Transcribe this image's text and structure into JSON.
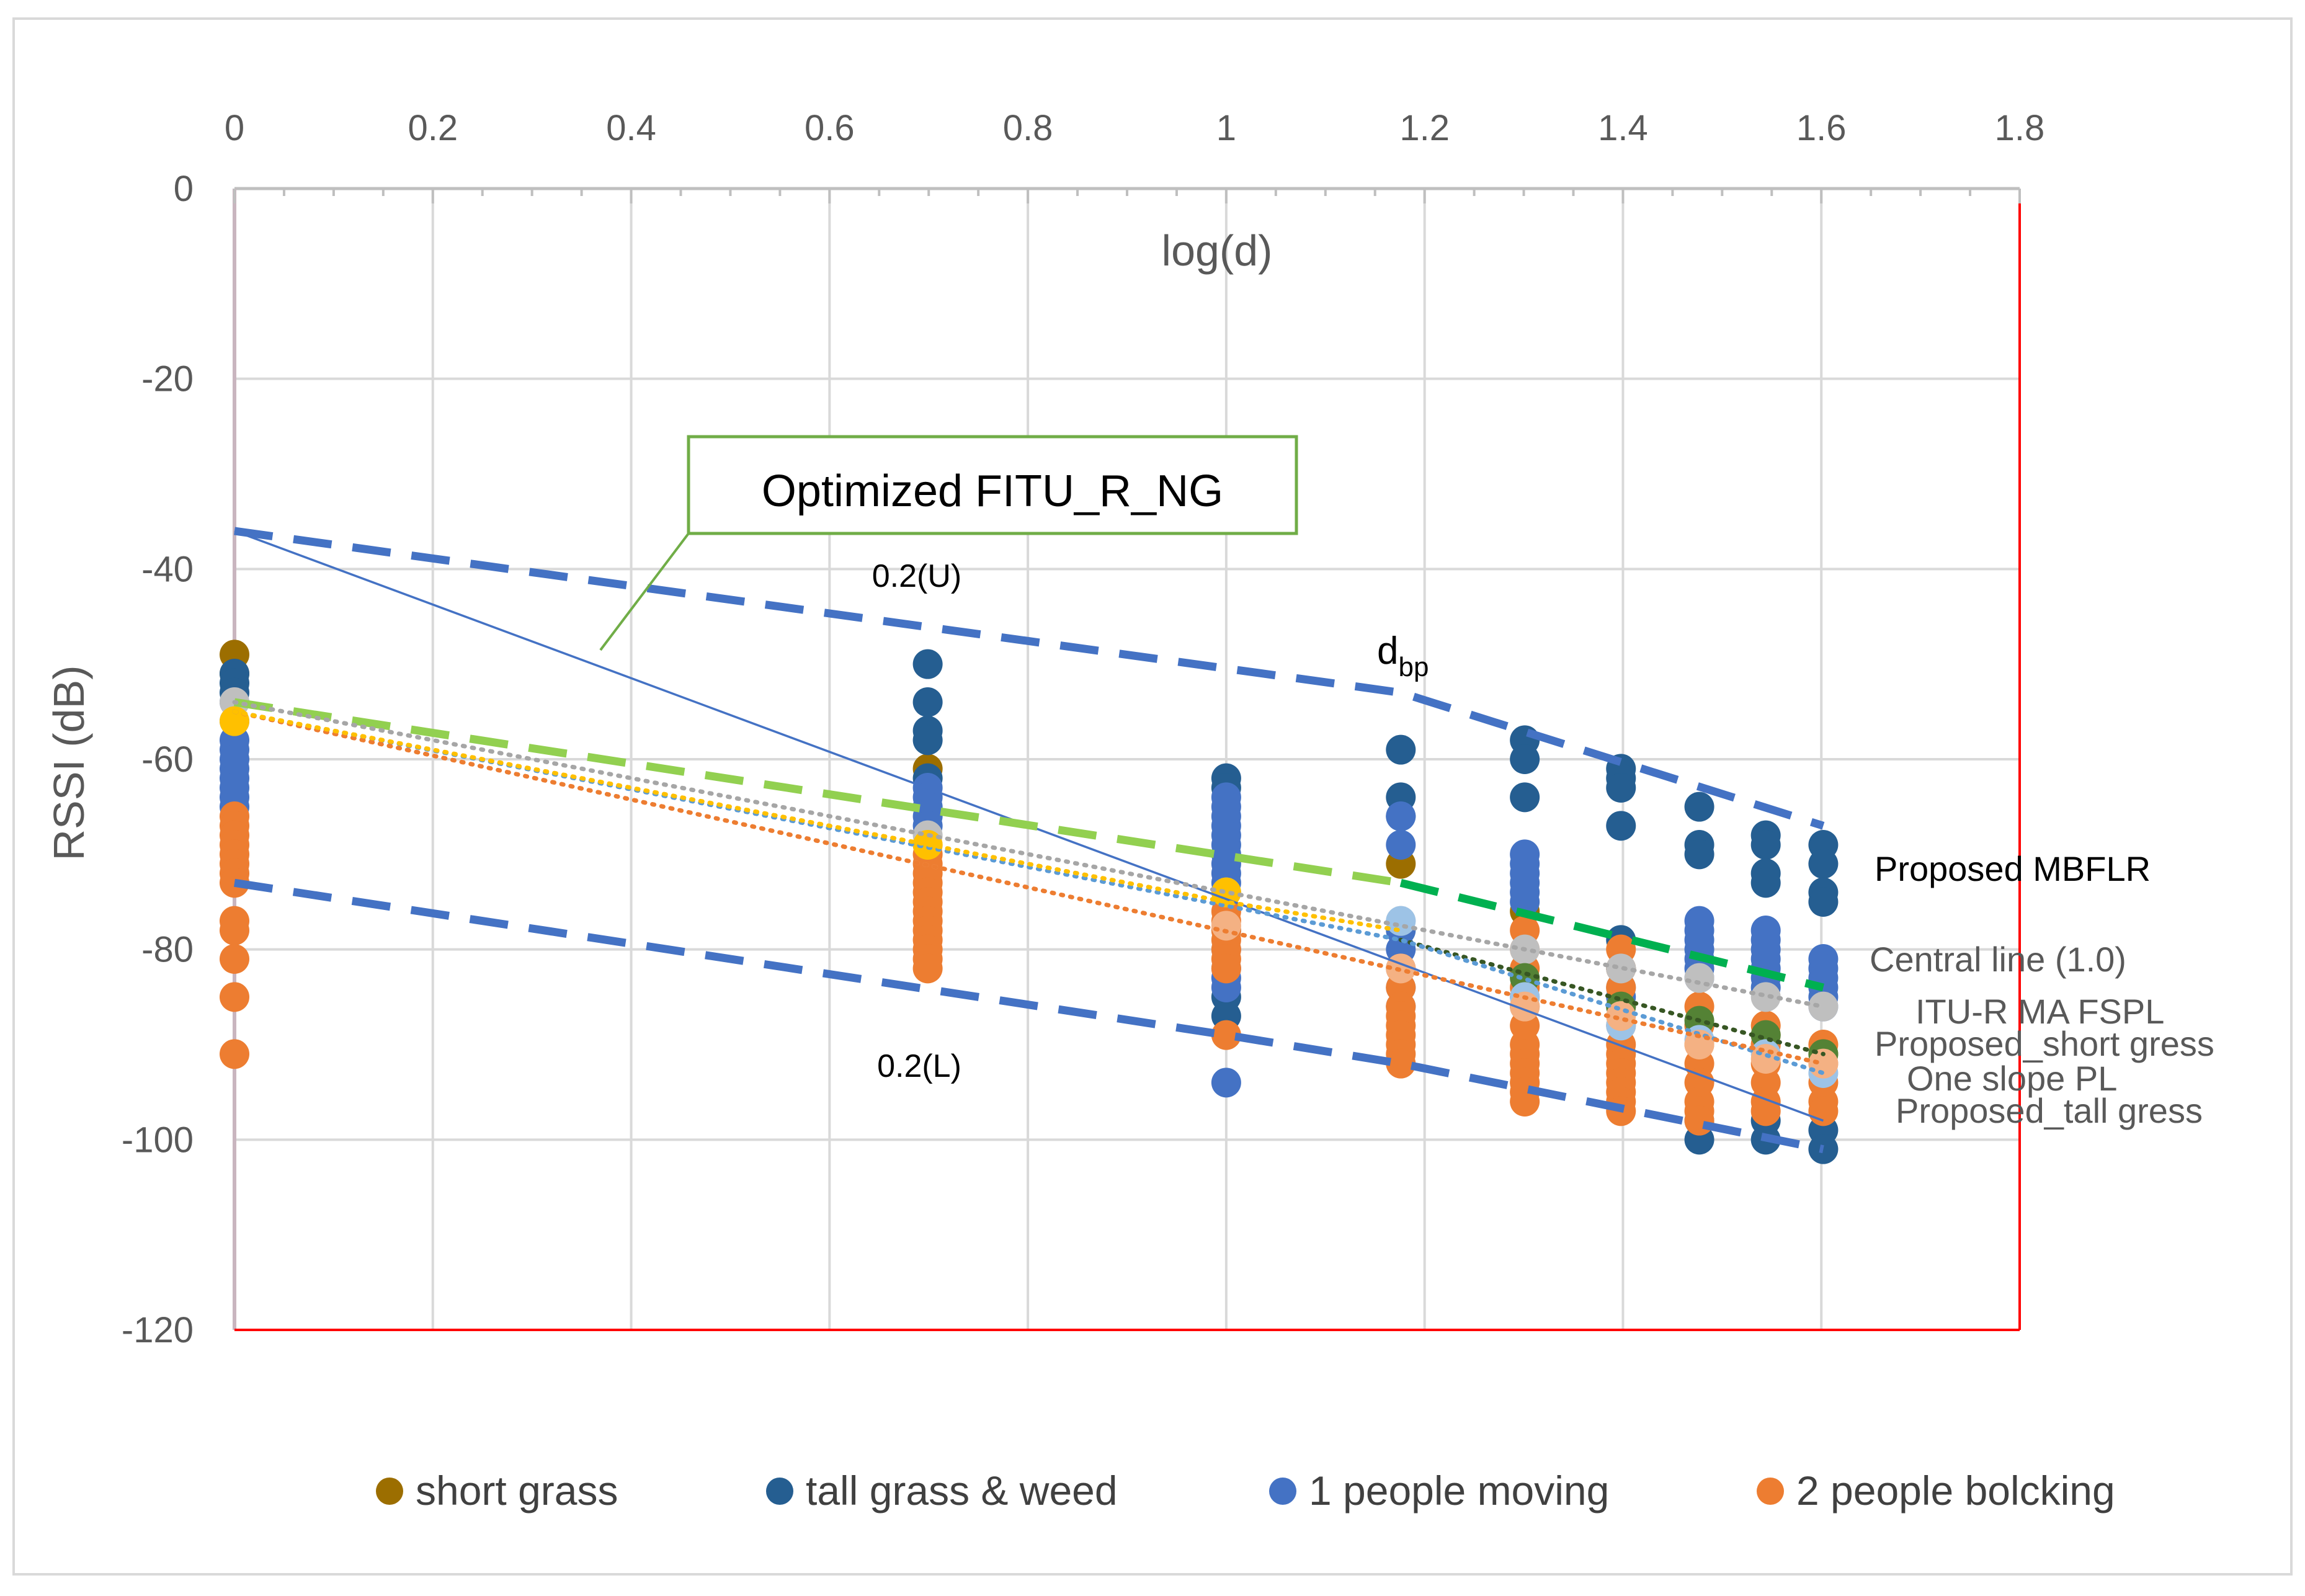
{
  "chart_data": {
    "type": "scatter",
    "xlabel": "log(d)",
    "ylabel": "RSSI (dB)",
    "xlim": [
      0,
      1.8
    ],
    "ylim": [
      -120,
      0
    ],
    "x_ticks": [
      "0",
      "0.2",
      "0.4",
      "0.6",
      "0.8",
      "1",
      "1.2",
      "1.4",
      "1.6",
      "1.8"
    ],
    "y_ticks": [
      "0",
      "-20",
      "-40",
      "-60",
      "-80",
      "-100",
      "-120"
    ],
    "grid": true,
    "legend_position": "bottom",
    "series": [
      {
        "name": "short grass",
        "color": "#9C6E00",
        "points": [
          [
            0,
            -49
          ],
          [
            0,
            -51
          ],
          [
            0.699,
            -61
          ],
          [
            1.176,
            -71
          ],
          [
            1.301,
            -76
          ],
          [
            1.398,
            -82
          ],
          [
            1.477,
            -88
          ],
          [
            1.544,
            -90
          ],
          [
            1.602,
            -91
          ]
        ]
      },
      {
        "name": "tall grass & weed",
        "color": "#255E91",
        "points": [
          [
            0,
            -51
          ],
          [
            0,
            -52
          ],
          [
            0,
            -53
          ],
          [
            0.699,
            -50
          ],
          [
            0.699,
            -54
          ],
          [
            0.699,
            -57
          ],
          [
            0.699,
            -58
          ],
          [
            0.699,
            -62
          ],
          [
            1,
            -62
          ],
          [
            1,
            -63
          ],
          [
            1,
            -85
          ],
          [
            1,
            -87
          ],
          [
            1.176,
            -59
          ],
          [
            1.176,
            -64
          ],
          [
            1.176,
            -66
          ],
          [
            1.301,
            -58
          ],
          [
            1.301,
            -60
          ],
          [
            1.301,
            -64
          ],
          [
            1.398,
            -61
          ],
          [
            1.398,
            -62
          ],
          [
            1.398,
            -63
          ],
          [
            1.398,
            -67
          ],
          [
            1.398,
            -79
          ],
          [
            1.477,
            -65
          ],
          [
            1.477,
            -69
          ],
          [
            1.477,
            -70
          ],
          [
            1.477,
            -98
          ],
          [
            1.477,
            -100
          ],
          [
            1.544,
            -68
          ],
          [
            1.544,
            -69
          ],
          [
            1.544,
            -72
          ],
          [
            1.544,
            -73
          ],
          [
            1.544,
            -98
          ],
          [
            1.544,
            -100
          ],
          [
            1.602,
            -69
          ],
          [
            1.602,
            -71
          ],
          [
            1.602,
            -74
          ],
          [
            1.602,
            -75
          ],
          [
            1.602,
            -99
          ],
          [
            1.602,
            -101
          ]
        ]
      },
      {
        "name": "1 people moving",
        "color": "#4472C4",
        "points": [
          [
            0,
            -54
          ],
          [
            0,
            -56
          ],
          [
            0,
            -58
          ],
          [
            0,
            -59
          ],
          [
            0,
            -60
          ],
          [
            0,
            -61
          ],
          [
            0,
            -62
          ],
          [
            0,
            -63
          ],
          [
            0,
            -64
          ],
          [
            0,
            -65
          ],
          [
            0.699,
            -63
          ],
          [
            0.699,
            -64
          ],
          [
            0.699,
            -65
          ],
          [
            0.699,
            -66
          ],
          [
            0.699,
            -67
          ],
          [
            1,
            -64
          ],
          [
            1,
            -65
          ],
          [
            1,
            -66
          ],
          [
            1,
            -67
          ],
          [
            1,
            -68
          ],
          [
            1,
            -69
          ],
          [
            1,
            -70
          ],
          [
            1,
            -71
          ],
          [
            1,
            -72
          ],
          [
            1,
            -73
          ],
          [
            1,
            -78
          ],
          [
            1,
            -80
          ],
          [
            1,
            -82
          ],
          [
            1,
            -83
          ],
          [
            1,
            -84
          ],
          [
            1,
            -94
          ],
          [
            1.176,
            -66
          ],
          [
            1.176,
            -69
          ],
          [
            1.176,
            -78
          ],
          [
            1.176,
            -80
          ],
          [
            1.176,
            -82
          ],
          [
            1.176,
            -84
          ],
          [
            1.176,
            -86
          ],
          [
            1.301,
            -70
          ],
          [
            1.301,
            -71
          ],
          [
            1.301,
            -72
          ],
          [
            1.301,
            -73
          ],
          [
            1.301,
            -74
          ],
          [
            1.301,
            -75
          ],
          [
            1.301,
            -85
          ],
          [
            1.301,
            -86
          ],
          [
            1.398,
            -82
          ],
          [
            1.398,
            -84
          ],
          [
            1.398,
            -85
          ],
          [
            1.398,
            -86
          ],
          [
            1.477,
            -77
          ],
          [
            1.477,
            -78
          ],
          [
            1.477,
            -79
          ],
          [
            1.477,
            -80
          ],
          [
            1.477,
            -81
          ],
          [
            1.477,
            -82
          ],
          [
            1.477,
            -83
          ],
          [
            1.544,
            -78
          ],
          [
            1.544,
            -79
          ],
          [
            1.544,
            -80
          ],
          [
            1.544,
            -81
          ],
          [
            1.544,
            -82
          ],
          [
            1.544,
            -83
          ],
          [
            1.544,
            -84
          ],
          [
            1.602,
            -81
          ],
          [
            1.602,
            -82
          ],
          [
            1.602,
            -83
          ],
          [
            1.602,
            -84
          ],
          [
            1.602,
            -85
          ],
          [
            1.602,
            -86
          ]
        ]
      },
      {
        "name": "2 people bolcking",
        "color": "#ED7D31",
        "points": [
          [
            0,
            -66
          ],
          [
            0,
            -67
          ],
          [
            0,
            -68
          ],
          [
            0,
            -69
          ],
          [
            0,
            -70
          ],
          [
            0,
            -71
          ],
          [
            0,
            -72
          ],
          [
            0,
            -73
          ],
          [
            0,
            -77
          ],
          [
            0,
            -78
          ],
          [
            0,
            -81
          ],
          [
            0,
            -85
          ],
          [
            0,
            -91
          ],
          [
            0.699,
            -69
          ],
          [
            0.699,
            -70
          ],
          [
            0.699,
            -71
          ],
          [
            0.699,
            -72
          ],
          [
            0.699,
            -73
          ],
          [
            0.699,
            -74
          ],
          [
            0.699,
            -75
          ],
          [
            0.699,
            -76
          ],
          [
            0.699,
            -77
          ],
          [
            0.699,
            -78
          ],
          [
            0.699,
            -79
          ],
          [
            0.699,
            -80
          ],
          [
            0.699,
            -81
          ],
          [
            0.699,
            -82
          ],
          [
            1,
            -76
          ],
          [
            1,
            -77
          ],
          [
            1,
            -78
          ],
          [
            1,
            -79
          ],
          [
            1,
            -80
          ],
          [
            1,
            -81
          ],
          [
            1,
            -82
          ],
          [
            1,
            -89
          ],
          [
            1.176,
            -82
          ],
          [
            1.176,
            -84
          ],
          [
            1.176,
            -86
          ],
          [
            1.176,
            -87
          ],
          [
            1.176,
            -88
          ],
          [
            1.176,
            -89
          ],
          [
            1.176,
            -90
          ],
          [
            1.176,
            -91
          ],
          [
            1.176,
            -92
          ],
          [
            1.301,
            -78
          ],
          [
            1.301,
            -80
          ],
          [
            1.301,
            -82
          ],
          [
            1.301,
            -84
          ],
          [
            1.301,
            -86
          ],
          [
            1.301,
            -88
          ],
          [
            1.301,
            -90
          ],
          [
            1.301,
            -91
          ],
          [
            1.301,
            -92
          ],
          [
            1.301,
            -93
          ],
          [
            1.301,
            -94
          ],
          [
            1.301,
            -95
          ],
          [
            1.301,
            -96
          ],
          [
            1.398,
            -80
          ],
          [
            1.398,
            -82
          ],
          [
            1.398,
            -84
          ],
          [
            1.398,
            -86
          ],
          [
            1.398,
            -88
          ],
          [
            1.398,
            -90
          ],
          [
            1.398,
            -91
          ],
          [
            1.398,
            -92
          ],
          [
            1.398,
            -93
          ],
          [
            1.398,
            -94
          ],
          [
            1.398,
            -95
          ],
          [
            1.398,
            -96
          ],
          [
            1.398,
            -97
          ],
          [
            1.477,
            -86
          ],
          [
            1.477,
            -88
          ],
          [
            1.477,
            -90
          ],
          [
            1.477,
            -92
          ],
          [
            1.477,
            -94
          ],
          [
            1.477,
            -96
          ],
          [
            1.477,
            -97
          ],
          [
            1.477,
            -98
          ],
          [
            1.544,
            -88
          ],
          [
            1.544,
            -89
          ],
          [
            1.544,
            -90
          ],
          [
            1.544,
            -92
          ],
          [
            1.544,
            -94
          ],
          [
            1.544,
            -96
          ],
          [
            1.544,
            -97
          ],
          [
            1.602,
            -90
          ],
          [
            1.602,
            -92
          ],
          [
            1.602,
            -94
          ],
          [
            1.602,
            -96
          ],
          [
            1.602,
            -97
          ]
        ]
      }
    ],
    "mean_markers": [
      {
        "name": "central-line-marker",
        "color": "#BFBFBF",
        "points": [
          [
            0,
            -54
          ],
          [
            0.699,
            -68
          ],
          [
            1,
            -74
          ],
          [
            1.176,
            -77
          ],
          [
            1.301,
            -80
          ],
          [
            1.398,
            -82
          ],
          [
            1.477,
            -83
          ],
          [
            1.544,
            -85
          ],
          [
            1.602,
            -86
          ]
        ]
      },
      {
        "name": "short-grass-mean-marker",
        "color": "#548235",
        "points": [
          [
            1.301,
            -83
          ],
          [
            1.398,
            -86
          ],
          [
            1.477,
            -87.5
          ],
          [
            1.544,
            -89
          ],
          [
            1.602,
            -91
          ]
        ]
      },
      {
        "name": "one-slope-marker",
        "color": "#9DC3E6",
        "points": [
          [
            1.176,
            -77
          ],
          [
            1.301,
            -85
          ],
          [
            1.398,
            -88
          ],
          [
            1.477,
            -89.5
          ],
          [
            1.544,
            -91
          ],
          [
            1.602,
            -93
          ]
        ]
      },
      {
        "name": "tall-grass-mean-marker",
        "color": "#F4B183",
        "points": [
          [
            1,
            -77.5
          ],
          [
            1.176,
            -82
          ],
          [
            1.301,
            -86
          ],
          [
            1.398,
            -87
          ],
          [
            1.477,
            -90
          ],
          [
            1.544,
            -91.5
          ],
          [
            1.602,
            -92
          ]
        ]
      },
      {
        "name": "yellow-marker",
        "color": "#FFC000",
        "points": [
          [
            0,
            -56
          ],
          [
            0.699,
            -69
          ],
          [
            1,
            -74
          ]
        ]
      }
    ],
    "lines": [
      {
        "name": "upper-bound-0.2U",
        "color": "#4472C4",
        "style": "dashed",
        "width": "thick",
        "points": [
          [
            0,
            -36
          ],
          [
            1.176,
            -53
          ],
          [
            1.602,
            -67
          ]
        ]
      },
      {
        "name": "lower-bound-0.2L",
        "color": "#4472C4",
        "style": "dashed",
        "width": "thick",
        "points": [
          [
            0,
            -73
          ],
          [
            1,
            -89
          ],
          [
            1.176,
            -92
          ],
          [
            1.602,
            -101
          ]
        ]
      },
      {
        "name": "optimized-fitu-r-ng",
        "color": "#4472C4",
        "style": "solid",
        "width": "thin",
        "points": [
          [
            0,
            -36
          ],
          [
            1.602,
            -98
          ]
        ]
      },
      {
        "name": "proposed-mbflr",
        "color": "#92D050",
        "style": "dashed",
        "width": "thick",
        "points": [
          [
            0,
            -54
          ],
          [
            1.176,
            -73
          ]
        ]
      },
      {
        "name": "proposed-mbflr-after-dbp",
        "color": "#00B050",
        "style": "dashed",
        "width": "thick",
        "points": [
          [
            1.176,
            -73
          ],
          [
            1.602,
            -84
          ]
        ]
      },
      {
        "name": "central-line",
        "color": "#A6A6A6",
        "style": "dotted",
        "width": "medium",
        "points": [
          [
            0,
            -54
          ],
          [
            1.602,
            -86
          ]
        ]
      },
      {
        "name": "itu-r-ma-fspl",
        "color": "#375623",
        "style": "dotted",
        "width": "medium",
        "points": [
          [
            1.176,
            -79
          ],
          [
            1.602,
            -91
          ]
        ]
      },
      {
        "name": "proposed-short-gress",
        "color": "#F4B183",
        "style": "dotted",
        "width": "medium",
        "points": [
          [
            0,
            -55
          ],
          [
            1.602,
            -92
          ]
        ]
      },
      {
        "name": "one-slope-pl",
        "color": "#5B9BD5",
        "style": "dotted",
        "width": "medium",
        "points": [
          [
            0,
            -55
          ],
          [
            1.176,
            -79
          ],
          [
            1.602,
            -93
          ]
        ]
      },
      {
        "name": "proposed-tall-gress",
        "color": "#ED7D31",
        "style": "dotted",
        "width": "medium",
        "points": [
          [
            0,
            -55
          ],
          [
            1.602,
            -92
          ]
        ]
      },
      {
        "name": "yellow-fit",
        "color": "#FFC000",
        "style": "dotted",
        "width": "medium",
        "points": [
          [
            0,
            -55
          ],
          [
            1,
            -75
          ],
          [
            1.176,
            -78
          ]
        ]
      }
    ],
    "annotations": {
      "callout_box": "Optimized FITU_R_NG",
      "upper_label": "0.2(U)",
      "lower_label": "0.2(L)",
      "dbp_main": "d",
      "dbp_sub": "bp",
      "proposed_mbflr": "Proposed MBFLR",
      "central_line": "Central line (1.0)",
      "itu_r": "ITU-R MA FSPL",
      "proposed_short": "Proposed_short gress",
      "one_slope": "One slope PL",
      "proposed_tall": "Proposed_tall gress"
    }
  }
}
